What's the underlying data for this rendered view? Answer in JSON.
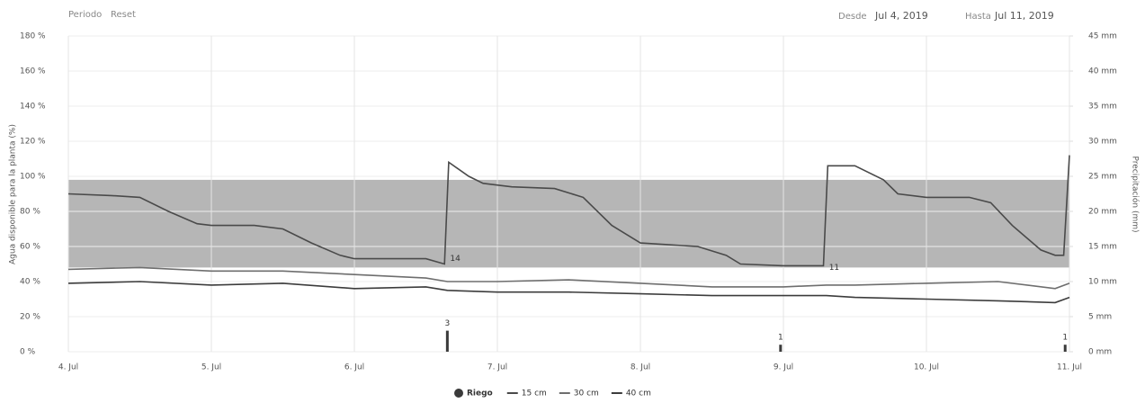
{
  "header": {
    "period": "Periodo",
    "reset": "Reset",
    "from_label": "Desde",
    "from": "Jul 4, 2019",
    "to_label": "Hasta",
    "to": "Jul 11, 2019"
  },
  "chart_data": {
    "type": "line",
    "ylabel": "Agua disponible para la planta (%)",
    "y2label": "Precipitación (mm)",
    "xlim": [
      4,
      11
    ],
    "xticks": [
      {
        "value": 4,
        "label": "4. Jul"
      },
      {
        "value": 5,
        "label": "5. Jul"
      },
      {
        "value": 6,
        "label": "6. Jul"
      },
      {
        "value": 7,
        "label": "7. Jul"
      },
      {
        "value": 8,
        "label": "8. Jul"
      },
      {
        "value": 9,
        "label": "9. Jul"
      },
      {
        "value": 10,
        "label": "10. Jul"
      },
      {
        "value": 11,
        "label": "11. Jul"
      }
    ],
    "ylim": [
      0,
      180
    ],
    "yticks": [
      {
        "value": 0,
        "label": "0 %"
      },
      {
        "value": 20,
        "label": "20 %"
      },
      {
        "value": 40,
        "label": "40 %"
      },
      {
        "value": 60,
        "label": "60 %"
      },
      {
        "value": 80,
        "label": "80 %"
      },
      {
        "value": 100,
        "label": "100 %"
      },
      {
        "value": 120,
        "label": "120 %"
      },
      {
        "value": 140,
        "label": "140 %"
      },
      {
        "value": 160,
        "label": "160 %"
      },
      {
        "value": 180,
        "label": "180 %"
      }
    ],
    "y2lim": [
      0,
      45
    ],
    "y2ticks": [
      {
        "value": 0,
        "label": "0 mm"
      },
      {
        "value": 5,
        "label": "5 mm"
      },
      {
        "value": 10,
        "label": "10 mm"
      },
      {
        "value": 15,
        "label": "15 mm"
      },
      {
        "value": 20,
        "label": "20 mm"
      },
      {
        "value": 25,
        "label": "25 mm"
      },
      {
        "value": 30,
        "label": "30 mm"
      },
      {
        "value": 35,
        "label": "35 mm"
      },
      {
        "value": 40,
        "label": "40 mm"
      },
      {
        "value": 45,
        "label": "45 mm"
      }
    ],
    "grid": true,
    "band": [
      48,
      98
    ],
    "band_color": "#a9a9a9",
    "riego": {
      "name": "Riego",
      "color": "#3a3a3a",
      "axis": "y2",
      "x": [
        6.65,
        8.98,
        10.97
      ],
      "values": [
        3,
        1,
        1
      ]
    },
    "annotations": [
      {
        "text": "14",
        "x": 6.65,
        "y": 52
      },
      {
        "text": "11",
        "x": 9.3,
        "y": 47
      }
    ],
    "series": [
      {
        "name": "15 cm",
        "color": "#4a4a4a",
        "x": [
          4.0,
          4.3,
          4.5,
          4.7,
          4.9,
          5.0,
          5.3,
          5.5,
          5.7,
          5.9,
          6.0,
          6.3,
          6.5,
          6.63,
          6.66,
          6.8,
          6.9,
          7.1,
          7.4,
          7.6,
          7.8,
          8.0,
          8.2,
          8.4,
          8.6,
          8.7,
          9.0,
          9.28,
          9.31,
          9.5,
          9.7,
          9.8,
          10.0,
          10.3,
          10.45,
          10.6,
          10.8,
          10.9,
          10.96,
          11.0
        ],
        "values": [
          90,
          89,
          88,
          80,
          73,
          72,
          72,
          70,
          62,
          55,
          53,
          53,
          53,
          50,
          108,
          100,
          96,
          94,
          93,
          88,
          72,
          62,
          61,
          60,
          55,
          50,
          49,
          49,
          106,
          106,
          98,
          90,
          88,
          88,
          85,
          72,
          58,
          55,
          55,
          112
        ]
      },
      {
        "name": "30 cm",
        "color": "#6e6e6e",
        "x": [
          4,
          4.5,
          5,
          5.5,
          6,
          6.5,
          6.65,
          7,
          7.5,
          8,
          8.5,
          9,
          9.3,
          9.5,
          10,
          10.5,
          10.9,
          11
        ],
        "values": [
          47,
          48,
          46,
          46,
          44,
          42,
          40,
          40,
          41,
          39,
          37,
          37,
          38,
          38,
          39,
          40,
          36,
          39
        ]
      },
      {
        "name": "40 cm",
        "color": "#3c3c3c",
        "x": [
          4,
          4.5,
          5,
          5.5,
          6,
          6.5,
          6.65,
          7,
          7.5,
          8,
          8.5,
          9,
          9.3,
          9.5,
          10,
          10.5,
          10.9,
          11
        ],
        "values": [
          39,
          40,
          38,
          39,
          36,
          37,
          35,
          34,
          34,
          33,
          32,
          32,
          32,
          31,
          30,
          29,
          28,
          31
        ]
      }
    ]
  }
}
